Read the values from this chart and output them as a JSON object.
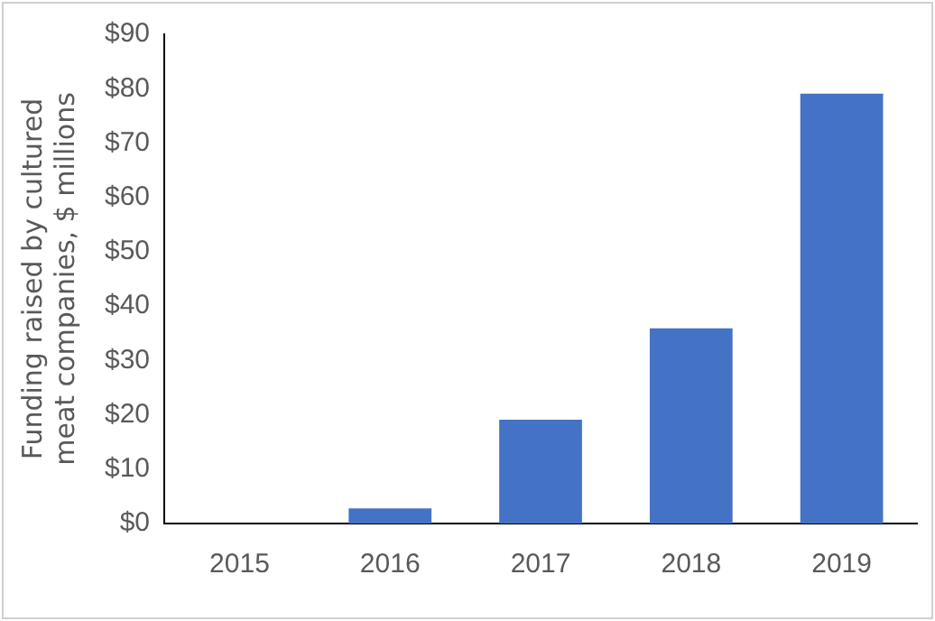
{
  "chart_data": {
    "type": "bar",
    "ylabel": "Funding raised by cultured meat companies, $ millions",
    "categories": [
      "2015",
      "2016",
      "2017",
      "2018",
      "2019"
    ],
    "values": [
      0,
      2.8,
      19.1,
      35.9,
      79.1
    ],
    "color": "#4472c4",
    "ylim": [
      0,
      90
    ],
    "yticks": [
      {
        "value": 0,
        "label": "$0"
      },
      {
        "value": 10,
        "label": "$10"
      },
      {
        "value": 20,
        "label": "$20"
      },
      {
        "value": 30,
        "label": "$30"
      },
      {
        "value": 40,
        "label": "$40"
      },
      {
        "value": 50,
        "label": "$50"
      },
      {
        "value": 60,
        "label": "$60"
      },
      {
        "value": 70,
        "label": "$70"
      },
      {
        "value": 80,
        "label": "$80"
      },
      {
        "value": 90,
        "label": "$90"
      }
    ],
    "grid": false,
    "legend": false
  }
}
